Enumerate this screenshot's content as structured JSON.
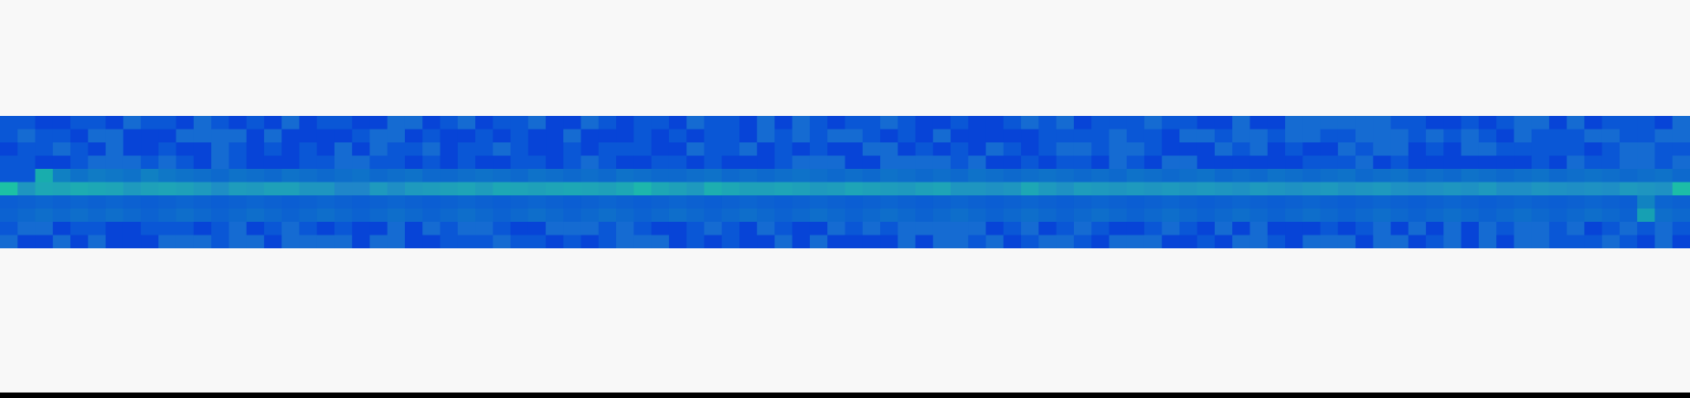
{
  "colors": {
    "background": "#f8f8f8",
    "strip_base": "#0a57d6",
    "strip_dark": "#0538d8",
    "strip_light": "#1f7fce",
    "signal": "#17a8a8",
    "signal_bright": "#1cc8a0",
    "bottom_rule": "#000000"
  },
  "strip": {
    "description_kind": "false-color intensity band",
    "columns": 96,
    "rows": 10,
    "signal_row": 5,
    "signal_levels": [
      0.9,
      0.3,
      0.55,
      0.5,
      0.6,
      0.55,
      0.5,
      0.35,
      0.45,
      0.5,
      0.45,
      0.35,
      0.2,
      0.4,
      0.35,
      0.45,
      0.45,
      0.3,
      0.3,
      0.1,
      0.1,
      0.35,
      0.2,
      0.35,
      0.4,
      0.45,
      0.5,
      0.4,
      0.55,
      0.5,
      0.45,
      0.5,
      0.55,
      0.5,
      0.45,
      0.55,
      0.75,
      0.55,
      0.45,
      0.35,
      0.65,
      0.55,
      0.45,
      0.45,
      0.5,
      0.45,
      0.35,
      0.4,
      0.5,
      0.45,
      0.4,
      0.35,
      0.45,
      0.5,
      0.3,
      0.3,
      0.25,
      0.3,
      0.55,
      0.35,
      0.25,
      0.4,
      0.35,
      0.3,
      0.35,
      0.3,
      0.35,
      0.3,
      0.35,
      0.3,
      0.25,
      0.35,
      0.3,
      0.25,
      0.3,
      0.35,
      0.25,
      0.3,
      0.35,
      0.25,
      0.2,
      0.25,
      0.3,
      0.25,
      0.35,
      0.2,
      0.2,
      0.3,
      0.25,
      0.2,
      0.25,
      0.2,
      0.35,
      0.3,
      0.25,
      0.85
    ],
    "upper_levels": [
      0.0,
      0.0,
      0.95,
      0.45,
      0.3,
      0.4,
      0.35,
      0.3,
      0.45,
      0.35,
      0.3,
      0.25,
      0.2,
      0.3,
      0.25,
      0.2,
      0.3,
      0.25,
      0.2,
      0.25,
      0.3,
      0.2,
      0.25,
      0.3,
      0.2,
      0.2,
      0.25,
      0.3,
      0.25,
      0.2,
      0.3,
      0.25,
      0.2,
      0.25,
      0.2,
      0.3,
      0.25,
      0.2,
      0.2,
      0.25,
      0.3,
      0.2,
      0.25,
      0.2,
      0.25,
      0.3,
      0.25,
      0.2,
      0.25,
      0.2,
      0.3,
      0.25,
      0.2,
      0.25,
      0.2,
      0.3,
      0.25,
      0.2,
      0.25,
      0.3,
      0.25,
      0.2,
      0.25,
      0.2,
      0.3,
      0.25,
      0.2,
      0.25,
      0.3,
      0.2,
      0.25,
      0.2,
      0.3,
      0.25,
      0.2,
      0.25,
      0.3,
      0.2,
      0.25,
      0.3,
      0.2,
      0.25,
      0.2,
      0.3,
      0.25,
      0.2,
      0.25,
      0.3,
      0.2,
      0.25,
      0.3,
      0.25,
      0.2,
      0.25,
      0.3,
      0.2
    ],
    "lower_levels": [
      0.1,
      0.15,
      0.2,
      0.15,
      0.2,
      0.15,
      0.2,
      0.15,
      0.1,
      0.15,
      0.2,
      0.15,
      0.1,
      0.15,
      0.2,
      0.15,
      0.1,
      0.15,
      0.2,
      0.15,
      0.1,
      0.15,
      0.2,
      0.15,
      0.1,
      0.15,
      0.2,
      0.15,
      0.1,
      0.15,
      0.2,
      0.15,
      0.1,
      0.15,
      0.2,
      0.15,
      0.1,
      0.15,
      0.2,
      0.15,
      0.1,
      0.15,
      0.2,
      0.15,
      0.1,
      0.15,
      0.2,
      0.15,
      0.1,
      0.15,
      0.2,
      0.15,
      0.1,
      0.15,
      0.2,
      0.15,
      0.1,
      0.15,
      0.2,
      0.15,
      0.1,
      0.15,
      0.2,
      0.15,
      0.1,
      0.15,
      0.2,
      0.15,
      0.1,
      0.15,
      0.2,
      0.15,
      0.1,
      0.15,
      0.2,
      0.15,
      0.1,
      0.15,
      0.2,
      0.15,
      0.1,
      0.15,
      0.2,
      0.15,
      0.1,
      0.15,
      0.2,
      0.15,
      0.1,
      0.15,
      0.2,
      0.15,
      0.1,
      0.65,
      0.2,
      0.15
    ]
  }
}
